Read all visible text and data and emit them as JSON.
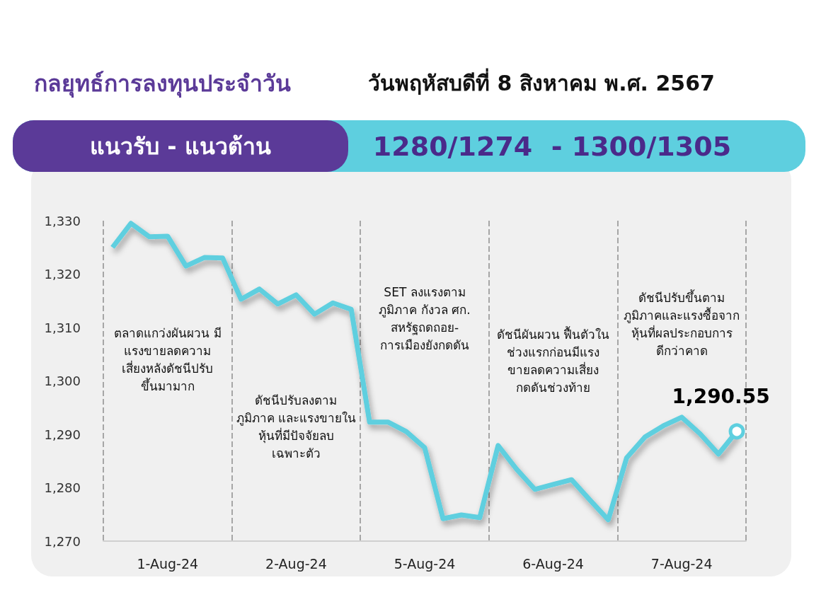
{
  "chart_data": {
    "type": "line",
    "title": "กลยุทธ์การลงทุนประจำวัน",
    "subtitle": "วันพฤหัสบดีที่ 8 สิงหาคม พ.ศ. 2567",
    "annotations": [
      "แนวรับ - แนวต้าน",
      "1280/1274  - 1300/1305",
      "ตลาดแกว่งผันผวน มี\nแรงขายลดความ\nเสี่ยงหลังดัชนีปรับ\nขึ้นมามาก",
      "ดัชนีปรับลงตาม\nภูมิภาค และแรงขายใน\nหุ้นที่มีปัจจัยลบ\nเฉพาะตัว",
      "SET ลงแรงตาม\nภูมิภาค กังวล ศก.\nสหรัฐถดถอย-\nการเมืองยังกดดัน",
      "ดัชนีผันผวน ฟื้นตัวใน\nช่วงแรกก่อนมีแรง\nขายลดความเสี่ยง\nกดดันช่วงท้าย",
      "ดัชนีปรับขึ้นตาม\nภูมิภาคและแรงซื้อจาก\nหุ้นที่ผลประกอบการ\nดีกว่าคาด"
    ],
    "categories": [
      null,
      null,
      null,
      "1-Aug-24",
      null,
      null,
      null,
      null,
      null,
      null,
      "2-Aug-24",
      null,
      null,
      null,
      null,
      null,
      null,
      "5-Aug-24",
      null,
      null,
      null,
      null,
      null,
      null,
      "6-Aug-24",
      null,
      null,
      null,
      null,
      null,
      null,
      "7-Aug-24",
      null,
      null,
      null
    ],
    "series": [
      {
        "color": "#5ecfdf",
        "values": [
          1325.0,
          1329.5,
          1327.0,
          1327.1,
          1321.5,
          1323.1,
          1323.0,
          1315.3,
          1317.2,
          1314.4,
          1316.1,
          1312.5,
          1314.6,
          1313.4,
          1292.3,
          1292.3,
          1290.5,
          1287.5,
          1274.2,
          1274.9,
          1274.4,
          1287.9,
          1283.5,
          1279.7,
          1280.6,
          1281.5,
          1277.7,
          1274.0,
          1285.6,
          1289.5,
          1291.6,
          1293.2,
          1290.1,
          1286.3,
          1290.55
        ],
        "value_labels": [
          null,
          null,
          null,
          null,
          null,
          null,
          null,
          null,
          null,
          null,
          null,
          null,
          null,
          null,
          null,
          null,
          null,
          null,
          null,
          null,
          null,
          null,
          null,
          null,
          null,
          null,
          null,
          null,
          null,
          null,
          null,
          null,
          null,
          null,
          "1,290.55"
        ]
      }
    ],
    "ylim": [
      1270,
      1330
    ],
    "yticks": [
      {
        "value": 1270,
        "label": "1,270"
      },
      {
        "value": 1280,
        "label": "1,280"
      },
      {
        "value": 1290,
        "label": "1,290"
      },
      {
        "value": 1300,
        "label": "1,300"
      },
      {
        "value": 1310,
        "label": "1,310"
      },
      {
        "value": 1320,
        "label": "1,320"
      },
      {
        "value": 1330,
        "label": "1,330"
      }
    ],
    "grid": "x",
    "line_style": "solid"
  }
}
